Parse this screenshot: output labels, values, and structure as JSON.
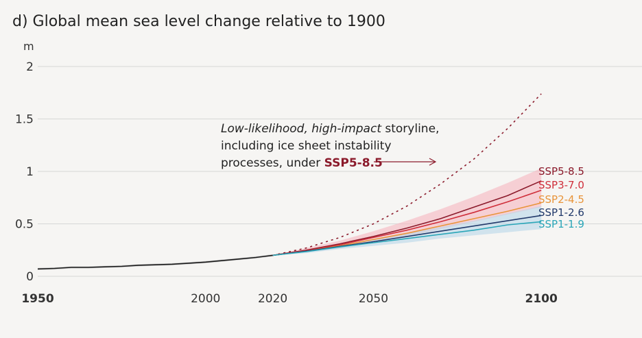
{
  "chart_data": {
    "type": "line",
    "title": "d) Global mean sea level change relative to 1900",
    "ylabel": "m",
    "ylim": [
      0,
      2
    ],
    "xlim": [
      1950,
      2130
    ],
    "yticks": [
      "0",
      "0.5",
      "1",
      "1.5",
      "2"
    ],
    "xticks": [
      {
        "value": 1950,
        "label": "1950",
        "bold": true
      },
      {
        "value": 2000,
        "label": "2000",
        "bold": false
      },
      {
        "value": 2020,
        "label": "2020",
        "bold": false
      },
      {
        "value": 2050,
        "label": "2050",
        "bold": false
      },
      {
        "value": 2100,
        "label": "2100",
        "bold": true
      }
    ],
    "grid": true,
    "colors": {
      "historical": "#1a1a1a",
      "ssp585": "#8b1a2b",
      "ssp370": "#cf2e3a",
      "ssp245": "#e8943a",
      "ssp126": "#223a6b",
      "ssp119": "#2aa6b8",
      "band_red": "#f6b6bf",
      "band_blue": "#b9d7ea"
    },
    "historical": {
      "x": [
        1950,
        1955,
        1960,
        1965,
        1970,
        1975,
        1980,
        1985,
        1990,
        1995,
        2000,
        2005,
        2010,
        2015,
        2020
      ],
      "y": [
        0.07,
        0.075,
        0.085,
        0.085,
        0.09,
        0.095,
        0.105,
        0.11,
        0.115,
        0.125,
        0.135,
        0.15,
        0.165,
        0.18,
        0.2
      ]
    },
    "series": [
      {
        "name": "SSP5-8.5",
        "color": "#8b1a2b",
        "x": [
          2020,
          2030,
          2040,
          2050,
          2060,
          2070,
          2080,
          2090,
          2100
        ],
        "values": [
          0.2,
          0.25,
          0.31,
          0.38,
          0.46,
          0.55,
          0.66,
          0.77,
          0.91
        ]
      },
      {
        "name": "SSP3-7.0",
        "color": "#cf2e3a",
        "x": [
          2020,
          2030,
          2040,
          2050,
          2060,
          2070,
          2080,
          2090,
          2100
        ],
        "values": [
          0.2,
          0.245,
          0.3,
          0.37,
          0.44,
          0.52,
          0.61,
          0.71,
          0.82
        ]
      },
      {
        "name": "SSP2-4.5",
        "color": "#e8943a",
        "x": [
          2020,
          2030,
          2040,
          2050,
          2060,
          2070,
          2080,
          2090,
          2100
        ],
        "values": [
          0.2,
          0.24,
          0.29,
          0.35,
          0.41,
          0.48,
          0.55,
          0.62,
          0.7
        ]
      },
      {
        "name": "SSP1-2.6",
        "color": "#223a6b",
        "x": [
          2020,
          2030,
          2040,
          2050,
          2060,
          2070,
          2080,
          2090,
          2100
        ],
        "values": [
          0.2,
          0.24,
          0.285,
          0.33,
          0.38,
          0.43,
          0.48,
          0.53,
          0.58
        ]
      },
      {
        "name": "SSP1-1.9",
        "color": "#2aa6b8",
        "x": [
          2020,
          2030,
          2040,
          2050,
          2060,
          2070,
          2080,
          2090,
          2100
        ],
        "values": [
          0.2,
          0.235,
          0.28,
          0.32,
          0.36,
          0.4,
          0.44,
          0.49,
          0.52
        ]
      }
    ],
    "bands": [
      {
        "color": "#f6b6bf",
        "x": [
          2020,
          2030,
          2040,
          2050,
          2060,
          2070,
          2080,
          2090,
          2100
        ],
        "low": [
          0.2,
          0.23,
          0.27,
          0.32,
          0.38,
          0.45,
          0.52,
          0.59,
          0.66
        ],
        "high": [
          0.2,
          0.27,
          0.34,
          0.43,
          0.53,
          0.64,
          0.76,
          0.89,
          1.03
        ]
      },
      {
        "color": "#b9d7ea",
        "x": [
          2020,
          2030,
          2040,
          2050,
          2060,
          2070,
          2080,
          2090,
          2100
        ],
        "low": [
          0.2,
          0.22,
          0.26,
          0.29,
          0.32,
          0.36,
          0.39,
          0.42,
          0.45
        ],
        "high": [
          0.2,
          0.25,
          0.3,
          0.35,
          0.41,
          0.47,
          0.53,
          0.6,
          0.67
        ]
      }
    ],
    "storyline": {
      "color": "#8b1a2b",
      "x": [
        2020,
        2030,
        2040,
        2050,
        2060,
        2070,
        2080,
        2090,
        2100
      ],
      "values": [
        0.2,
        0.27,
        0.37,
        0.5,
        0.67,
        0.88,
        1.12,
        1.41,
        1.74
      ]
    },
    "annotation": {
      "line1_italic": "Low-likelihood, high-impact",
      "line1_rest": " storyline,",
      "line2": "including ice sheet instability",
      "line3": "processes, under ",
      "line3_bold": "SSP5-8.5"
    }
  }
}
